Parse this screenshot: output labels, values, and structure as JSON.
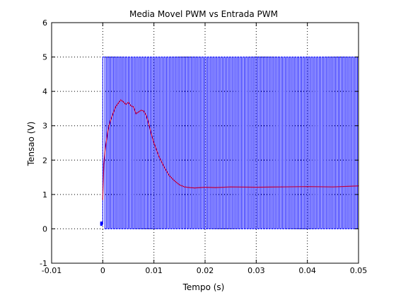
{
  "chart_data": {
    "type": "line",
    "title": "Media Movel PWM vs Entrada PWM",
    "xlabel": "Tempo (s)",
    "ylabel": "Tensao (V)",
    "xlim": [
      -0.01,
      0.05
    ],
    "ylim": [
      -1,
      6
    ],
    "xticks": [
      -0.01,
      0,
      0.01,
      0.02,
      0.03,
      0.04,
      0.05
    ],
    "xtick_labels": [
      "-0.01",
      "0",
      "0.01",
      "0.02",
      "0.03",
      "0.04",
      "0.05"
    ],
    "yticks": [
      -1,
      0,
      1,
      2,
      3,
      4,
      5,
      6
    ],
    "ytick_labels": [
      "-1",
      "0",
      "1",
      "2",
      "3",
      "4",
      "5",
      "6"
    ],
    "grid": true,
    "series": [
      {
        "color": "#0000ff",
        "style": "pwm-square-wave",
        "baseline_before_start": 0.15,
        "start_time": 0.0,
        "high": 5.0,
        "low": 0.0,
        "edges": [
          0.0,
          0.00042,
          0.00073,
          0.00101,
          0.00126,
          0.00154,
          0.0018,
          0.00208,
          0.00234,
          0.0026,
          0.00287,
          0.00314,
          0.00341,
          0.00367,
          0.00394,
          0.0042,
          0.00447,
          0.00474,
          0.005,
          0.00527,
          0.00554,
          0.0058,
          0.00607,
          0.00633,
          0.0066,
          0.00687,
          0.00714,
          0.0074,
          0.00767,
          0.00793,
          0.0082,
          0.00847,
          0.00874,
          0.009,
          0.00927,
          0.00953,
          0.0098,
          0.01007,
          0.01033,
          0.0106,
          0.01087,
          0.01113,
          0.0114,
          0.01167,
          0.01194,
          0.0122,
          0.01247,
          0.01273,
          0.013,
          0.01327,
          0.01353,
          0.0138,
          0.01407,
          0.01433,
          0.0146,
          0.01487,
          0.01513,
          0.0154,
          0.01567,
          0.01593,
          0.0162,
          0.01647,
          0.01673,
          0.017,
          0.01727,
          0.01753,
          0.0178,
          0.01807,
          0.01833,
          0.0186,
          0.01887,
          0.01913,
          0.0194,
          0.01967,
          0.01993,
          0.0202,
          0.02047,
          0.02073,
          0.021,
          0.02127,
          0.02153,
          0.0218,
          0.02207,
          0.02233,
          0.0226,
          0.02287,
          0.02313,
          0.0234,
          0.02367,
          0.02393,
          0.0242,
          0.02447,
          0.02473,
          0.025,
          0.02527,
          0.02553,
          0.0258,
          0.02607,
          0.02633,
          0.0266,
          0.02687,
          0.02713,
          0.0274,
          0.02767,
          0.02793,
          0.0282,
          0.02847,
          0.02873,
          0.029,
          0.02927,
          0.02953,
          0.0298,
          0.03007,
          0.03033,
          0.0306,
          0.03087,
          0.03113,
          0.0314,
          0.03167,
          0.03193,
          0.0322,
          0.03247,
          0.03273,
          0.033,
          0.03327,
          0.03353,
          0.0338,
          0.03407,
          0.03433,
          0.0346,
          0.03487,
          0.03513,
          0.0354,
          0.03567,
          0.03593,
          0.0362,
          0.03647,
          0.03673,
          0.037,
          0.03727,
          0.03753,
          0.0378,
          0.03807,
          0.03833,
          0.0386,
          0.03887,
          0.03913,
          0.0394,
          0.03967,
          0.03993,
          0.0402,
          0.04047,
          0.04073,
          0.041,
          0.04127,
          0.04153,
          0.0418,
          0.04207,
          0.04233,
          0.0426,
          0.04287,
          0.04313,
          0.0434,
          0.04367,
          0.04393,
          0.0442,
          0.04447,
          0.04473,
          0.045,
          0.04527,
          0.04553,
          0.0458,
          0.04607,
          0.04633,
          0.0466,
          0.04687,
          0.04713,
          0.0474,
          0.04767,
          0.04793,
          0.0482,
          0.04847,
          0.04873,
          0.049,
          0.04927,
          0.04953,
          0.0498
        ]
      },
      {
        "color": "#bf0040",
        "style": "moving-average",
        "x": [
          0.0,
          0.0002,
          0.0005,
          0.001,
          0.0015,
          0.002,
          0.0025,
          0.003,
          0.0035,
          0.004,
          0.0045,
          0.005,
          0.0055,
          0.006,
          0.0065,
          0.007,
          0.0075,
          0.008,
          0.0085,
          0.009,
          0.0095,
          0.01,
          0.011,
          0.012,
          0.013,
          0.014,
          0.015,
          0.016,
          0.017,
          0.018,
          0.019,
          0.02,
          0.022,
          0.025,
          0.03,
          0.035,
          0.04,
          0.045,
          0.05
        ],
        "y": [
          0.85,
          1.9,
          2.35,
          2.85,
          3.15,
          3.35,
          3.55,
          3.65,
          3.75,
          3.7,
          3.62,
          3.68,
          3.58,
          3.55,
          3.35,
          3.4,
          3.45,
          3.43,
          3.3,
          3.05,
          2.75,
          2.5,
          2.1,
          1.8,
          1.55,
          1.4,
          1.28,
          1.22,
          1.2,
          1.19,
          1.2,
          1.21,
          1.2,
          1.22,
          1.21,
          1.22,
          1.23,
          1.22,
          1.25
        ]
      }
    ]
  }
}
